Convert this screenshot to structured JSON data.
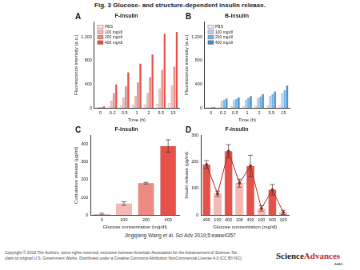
{
  "title": "Fig. 3 Glucose- and structure-dependent insulin release.",
  "citation": "Jingqiang Wang et al. Sci Adv 2019;5:eaaw4357",
  "copyright": "Copyright © 2019 The Authors, some rights reserved; exclusive licensee American Association for the Advancement of Science. No claim to original U.S. Government Works. Distributed under a Creative Commons Attribution NonCommercial License 4.0 (CC BY-NC).",
  "logo": [
    "Science",
    "Advances"
  ],
  "logo_sub": "AAAS",
  "chart_data": [
    {
      "panel": "A",
      "type": "bar",
      "title": "F-insulin",
      "x_label": "Time (h)",
      "y_label": "Fluorescence intensity (a.u.)",
      "categories": [
        "0",
        "0.2",
        "0.5",
        "1",
        "2",
        "5.5",
        "15"
      ],
      "series": [
        {
          "name": "PBS",
          "color": "#fde3e0",
          "values": [
            10,
            30,
            40,
            50,
            60,
            70,
            80
          ]
        },
        {
          "name": "100 mg/dl",
          "color": "#f4b9b5",
          "values": [
            15,
            120,
            180,
            200,
            250,
            330,
            380
          ]
        },
        {
          "name": "200 mg/dl",
          "color": "#ee8a84",
          "values": [
            20,
            250,
            370,
            430,
            520,
            640,
            700
          ]
        },
        {
          "name": "400 mg/dl",
          "color": "#e8504a",
          "values": [
            30,
            400,
            600,
            750,
            900,
            1250,
            1280
          ]
        }
      ],
      "ylim": [
        0,
        1450
      ],
      "yticks": [
        0,
        400,
        800,
        1200
      ],
      "legend": "upper left",
      "grid": false
    },
    {
      "panel": "B",
      "type": "bar",
      "title": "B-insulin",
      "x_label": "Time (h)",
      "y_label": "Fluorescence intensity (a.u.)",
      "categories": [
        "0",
        "0.2",
        "0.5",
        "1",
        "2",
        "5.5",
        "15"
      ],
      "series": [
        {
          "name": "PBS",
          "color": "#e3f0fb",
          "values": [
            10,
            20,
            25,
            30,
            35,
            40,
            45
          ]
        },
        {
          "name": "100 mg/dl",
          "color": "#aed3f2",
          "values": [
            10,
            120,
            130,
            140,
            160,
            200,
            250
          ]
        },
        {
          "name": "200 mg/dl",
          "color": "#6db3ea",
          "values": [
            15,
            140,
            150,
            170,
            190,
            230,
            300
          ]
        },
        {
          "name": "400 mg/dl",
          "color": "#2f8fde",
          "values": [
            20,
            160,
            180,
            200,
            230,
            280,
            380
          ]
        }
      ],
      "ylim": [
        0,
        1450
      ],
      "yticks": [
        0,
        400,
        800,
        1200
      ],
      "legend": "upper left",
      "grid": false
    },
    {
      "panel": "C",
      "type": "bar",
      "title": "F-insulin",
      "x_label": "Glucose concentration (mg/dl)",
      "y_label": "Cumulative release (μg/ml)",
      "categories": [
        "0",
        "100",
        "200",
        "400"
      ],
      "series": [
        {
          "colors": [
            "#fde3e0",
            "#f4b9b5",
            "#ee8a84",
            "#e8504a"
          ],
          "values": [
            5,
            65,
            180,
            390
          ],
          "errors": [
            5,
            10,
            5,
            35
          ]
        }
      ],
      "ylim": [
        0,
        450
      ],
      "yticks": [
        0,
        100,
        200,
        300,
        400
      ],
      "grid": false
    },
    {
      "panel": "D",
      "type": "bar",
      "title": "F-insulin",
      "x_label": "Glucose concentration (mg/dl)",
      "y_label": "Insulin release (μg/ml)",
      "categories": [
        "400",
        "100",
        "400",
        "100",
        "400",
        "100",
        "400",
        "100"
      ],
      "series": [
        {
          "type": "bar",
          "colors": [
            "#e8504a",
            "#f4b9b5",
            "#e8504a",
            "#f4b9b5",
            "#e8504a",
            "#f4b9b5",
            "#e8504a",
            "#f4b9b5"
          ],
          "values": [
            190,
            80,
            240,
            120,
            185,
            25,
            95,
            10
          ],
          "errors": [
            15,
            10,
            25,
            15,
            40,
            10,
            20,
            8
          ]
        },
        {
          "type": "line",
          "color": "#b0281f",
          "line_style": "solid",
          "marker": "circle",
          "values": [
            190,
            80,
            240,
            120,
            185,
            25,
            95,
            10
          ]
        }
      ],
      "ylim": [
        0,
        300
      ],
      "yticks": [
        0,
        100,
        200,
        300
      ],
      "grid": false
    }
  ]
}
